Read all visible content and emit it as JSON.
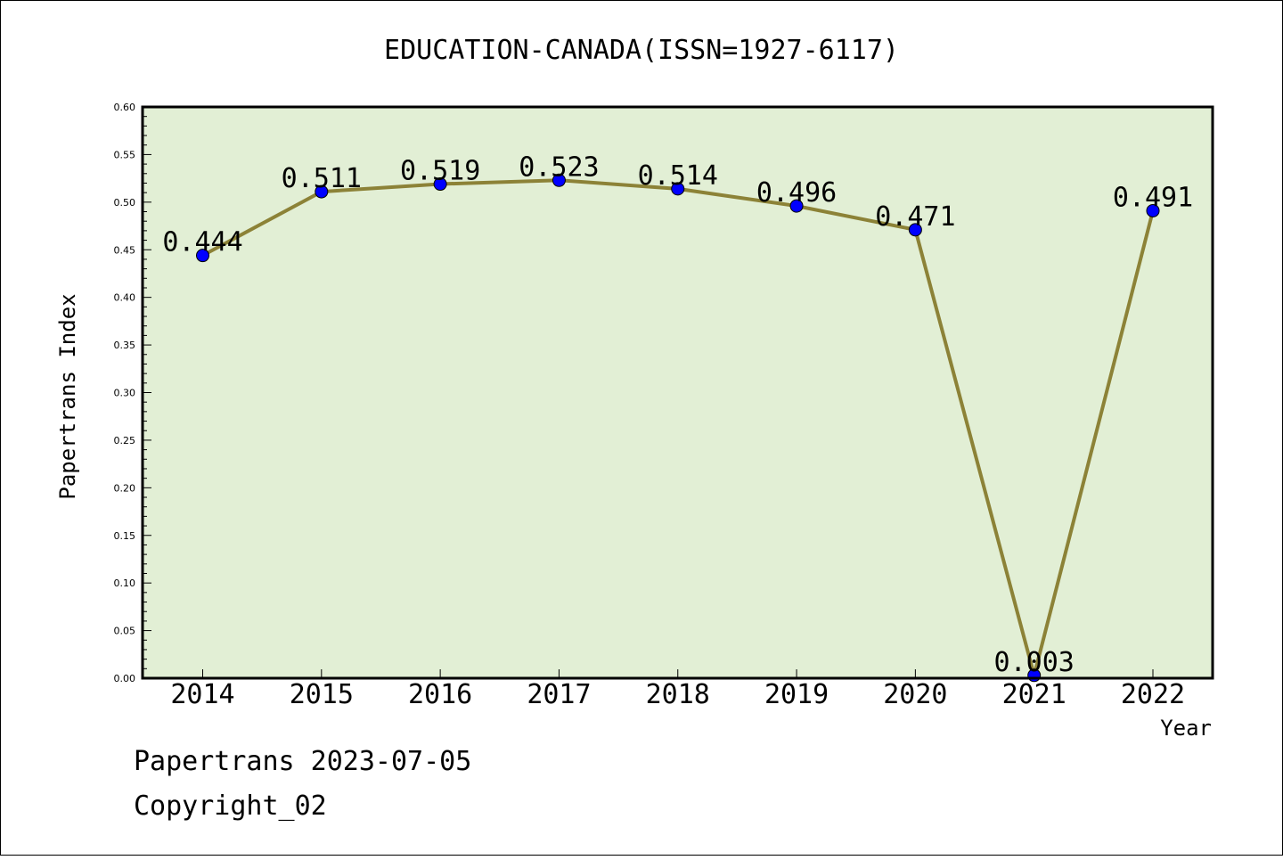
{
  "chart_data": {
    "type": "line",
    "title": "EDUCATION-CANADA(ISSN=1927-6117)",
    "xlabel": "Year",
    "ylabel": "Papertrans Index",
    "categories": [
      "2014",
      "2015",
      "2016",
      "2017",
      "2018",
      "2019",
      "2020",
      "2021",
      "2022"
    ],
    "values": [
      0.444,
      0.511,
      0.519,
      0.523,
      0.514,
      0.496,
      0.471,
      0.003,
      0.491
    ],
    "data_labels": [
      "0.444",
      "0.511",
      "0.519",
      "0.523",
      "0.514",
      "0.496",
      "0.471",
      "0.003",
      "0.491"
    ],
    "ylim": [
      0,
      0.6
    ],
    "yticks": [
      "0.00",
      "0.05",
      "0.10",
      "0.15",
      "0.20",
      "0.25",
      "0.30",
      "0.35",
      "0.40",
      "0.45",
      "0.50",
      "0.55",
      "0.60"
    ],
    "grid": false,
    "colors": {
      "plot_background": "#e2efd5",
      "line": "#8c8237",
      "marker": "#0000ff"
    }
  },
  "footer": {
    "line1": "Papertrans 2023-07-05",
    "line2": "Copyright_02"
  }
}
